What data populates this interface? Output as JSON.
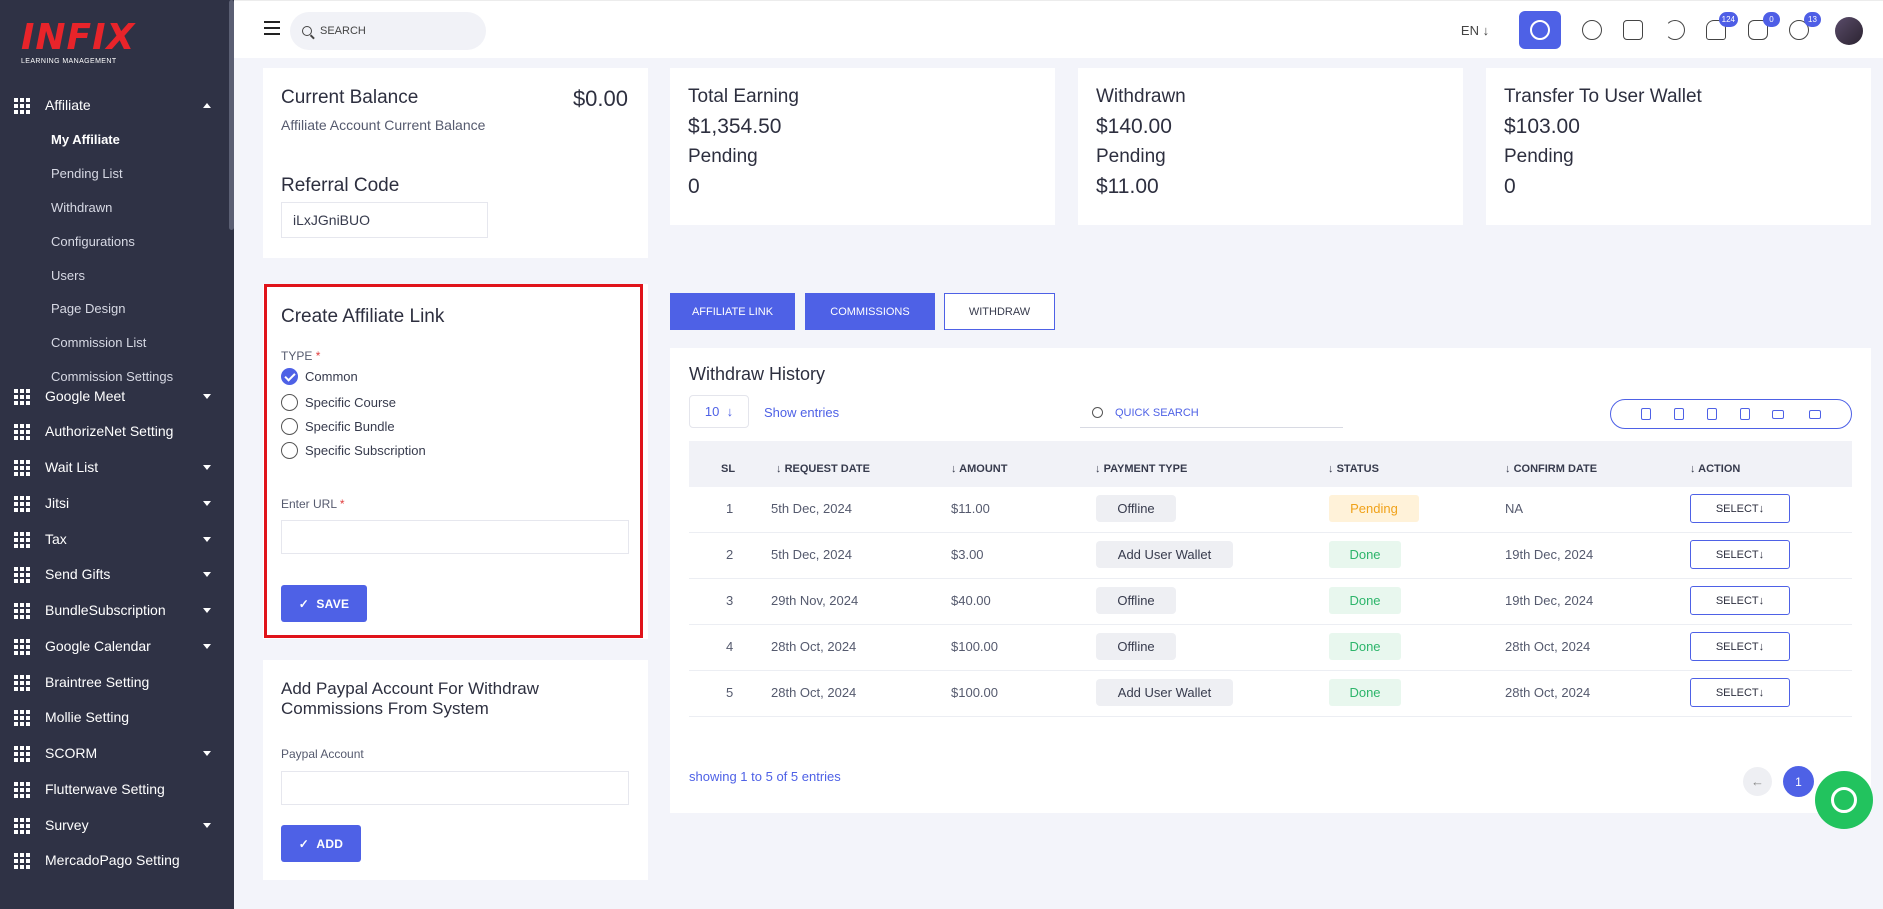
{
  "app": {
    "logo": "INFIX",
    "logo_sub": "LEARNING MANAGEMENT",
    "brand_color": "#e8242a",
    "accent": "#4e61e6"
  },
  "sidebar": {
    "main": {
      "label": "Affiliate",
      "icon": "grid-icon"
    },
    "sub": [
      "My Affiliate",
      "Pending List",
      "Withdrawn",
      "Configurations",
      "Users",
      "Page Design",
      "Commission List",
      "Commission Settings"
    ],
    "items": [
      {
        "label": "Google Meet",
        "caret": true
      },
      {
        "label": "AuthorizeNet Setting",
        "caret": false
      },
      {
        "label": "Wait List",
        "caret": true
      },
      {
        "label": "Jitsi",
        "caret": true
      },
      {
        "label": "Tax",
        "caret": true
      },
      {
        "label": "Send Gifts",
        "caret": true
      },
      {
        "label": "BundleSubscription",
        "caret": true
      },
      {
        "label": "Google Calendar",
        "caret": true
      },
      {
        "label": "Braintree Setting",
        "caret": false
      },
      {
        "label": "Mollie Setting",
        "caret": false
      },
      {
        "label": "SCORM",
        "caret": true
      },
      {
        "label": "Flutterwave Setting",
        "caret": false
      },
      {
        "label": "Survey",
        "caret": true
      },
      {
        "label": "MercadoPago Setting",
        "caret": false
      }
    ]
  },
  "topbar": {
    "search_placeholder": "SEARCH",
    "lang": "EN",
    "notif_count": "124",
    "msg_count": "0",
    "chat_count": "13"
  },
  "balance": {
    "title": "Current Balance",
    "value": "$0.00",
    "subtitle": "Affiliate Account Current Balance"
  },
  "stats": [
    {
      "title": "Total Earning",
      "value": "$1,354.50",
      "pending_label": "Pending",
      "pending": "0"
    },
    {
      "title": "Withdrawn",
      "value": "$140.00",
      "pending_label": "Pending",
      "pending": "$11.00"
    },
    {
      "title": "Transfer To User Wallet",
      "value": "$103.00",
      "pending_label": "Pending",
      "pending": "0"
    }
  ],
  "referral": {
    "title": "Referral Code",
    "code": "iLxJGniBUO"
  },
  "create_link": {
    "title": "Create Affiliate Link",
    "type_label": "TYPE",
    "options": [
      "Common",
      "Specific Course",
      "Specific Bundle",
      "Specific Subscription"
    ],
    "selected": "Common",
    "url_label": "Enter URL",
    "url_value": "",
    "save_label": "SAVE"
  },
  "paypal": {
    "title_line1": "Add Paypal Account For Withdraw",
    "title_line2": "Commissions From System",
    "label": "Paypal Account",
    "value": "",
    "add_label": "ADD"
  },
  "tabs": [
    "AFFILIATE LINK",
    "COMMISSIONS",
    "WITHDRAW"
  ],
  "history": {
    "title": "Withdraw History",
    "page_size": "10",
    "show_entries": "Show entries",
    "quick_search": "QUICK SEARCH",
    "headers": [
      "SL",
      "REQUEST DATE",
      "AMOUNT",
      "PAYMENT TYPE",
      "STATUS",
      "CONFIRM DATE",
      "ACTION"
    ],
    "rows": [
      {
        "sl": "1",
        "date": "5th Dec, 2024",
        "amount": "$11.00",
        "type": "Offline",
        "status": "Pending",
        "confirm": "NA",
        "action": "SELECT"
      },
      {
        "sl": "2",
        "date": "5th Dec, 2024",
        "amount": "$3.00",
        "type": "Add User Wallet",
        "status": "Done",
        "confirm": "19th Dec, 2024",
        "action": "SELECT"
      },
      {
        "sl": "3",
        "date": "29th Nov, 2024",
        "amount": "$40.00",
        "type": "Offline",
        "status": "Done",
        "confirm": "19th Dec, 2024",
        "action": "SELECT"
      },
      {
        "sl": "4",
        "date": "28th Oct, 2024",
        "amount": "$100.00",
        "type": "Offline",
        "status": "Done",
        "confirm": "28th Oct, 2024",
        "action": "SELECT"
      },
      {
        "sl": "5",
        "date": "28th Oct, 2024",
        "amount": "$100.00",
        "type": "Add User Wallet",
        "status": "Done",
        "confirm": "28th Oct, 2024",
        "action": "SELECT"
      }
    ],
    "footer": "showing 1 to 5 of 5 entries",
    "page": "1"
  }
}
